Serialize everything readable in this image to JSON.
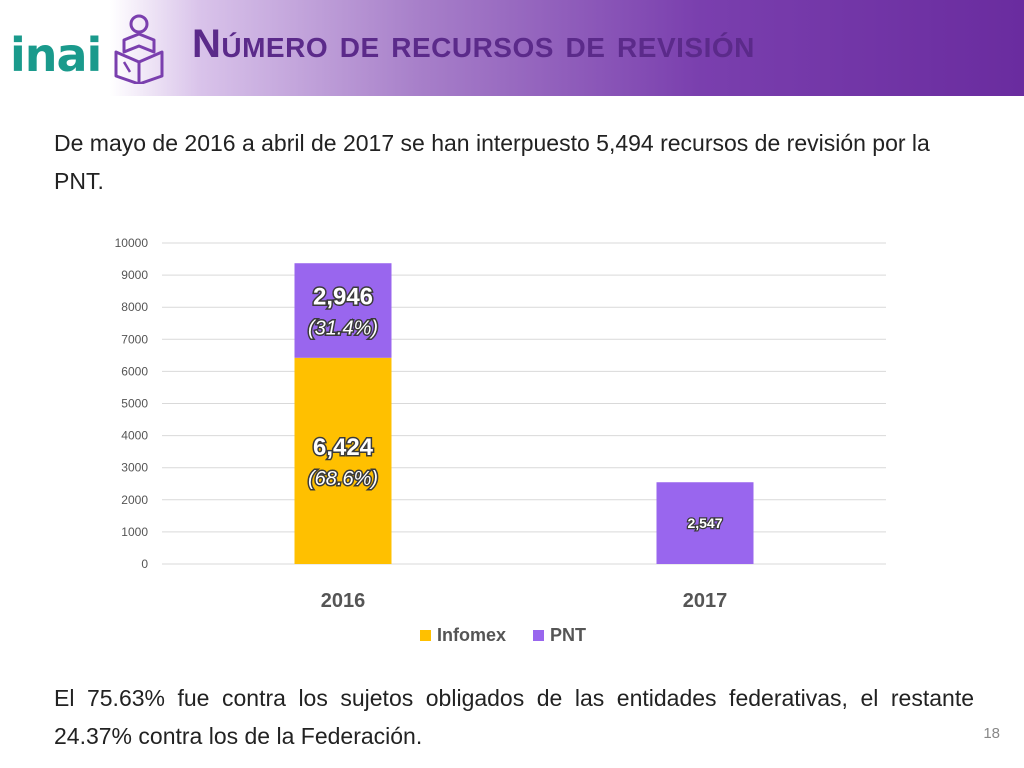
{
  "header": {
    "title": "Número de recursos de revisión",
    "logo_text": "inai"
  },
  "intro_text": "De mayo de 2016 a abril de 2017 se han interpuesto 5,494 recursos de revisión por la PNT.",
  "footer_text": "El 75.63% fue contra los sujetos obligados de las entidades federativas, el restante 24.37% contra los de la Federación.",
  "page_number": "18",
  "colors": {
    "infomex": "#ffc000",
    "pnt": "#9966ee",
    "grid": "#d9d9d9",
    "header_accent": "#6a2c9f",
    "logo": "#1a9a8c"
  },
  "chart_data": {
    "type": "bar",
    "stacked": true,
    "categories": [
      "2016",
      "2017"
    ],
    "series": [
      {
        "name": "Infomex",
        "values": [
          6424,
          0
        ],
        "labels": [
          "6,424",
          ""
        ],
        "sublabels": [
          "(68.6%)",
          ""
        ]
      },
      {
        "name": "PNT",
        "values": [
          2946,
          2547
        ],
        "labels": [
          "2,946",
          "2,547"
        ],
        "sublabels": [
          "(31.4%)",
          ""
        ]
      }
    ],
    "yticks": [
      "0",
      "1000",
      "2000",
      "3000",
      "4000",
      "5000",
      "6000",
      "7000",
      "8000",
      "9000",
      "10000"
    ],
    "ylim": [
      0,
      10000
    ],
    "title": "",
    "xlabel": "",
    "ylabel": "",
    "grid": true,
    "legend": "bottom"
  }
}
